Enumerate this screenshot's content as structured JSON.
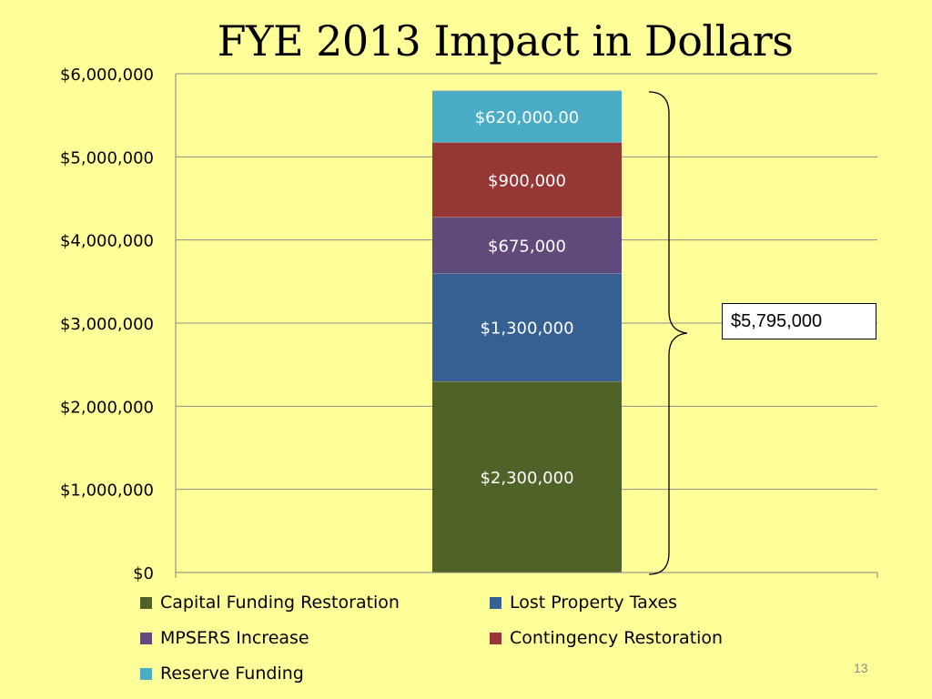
{
  "slide": {
    "page_number": "13"
  },
  "chart_data": {
    "type": "bar",
    "stacked": true,
    "title": "FYE 2013 Impact in Dollars",
    "categories": [
      ""
    ],
    "ylim": [
      0,
      6000000
    ],
    "yticks": [
      0,
      1000000,
      2000000,
      3000000,
      4000000,
      5000000,
      6000000
    ],
    "ytick_labels": [
      "$0",
      "$1,000,000",
      "$2,000,000",
      "$3,000,000",
      "$4,000,000",
      "$5,000,000",
      "$6,000,000"
    ],
    "grid": true,
    "legend_position": "bottom",
    "series": [
      {
        "name": "Capital Funding Restoration",
        "values": [
          2300000
        ],
        "label": "$2,300,000",
        "color": "#4f6228"
      },
      {
        "name": "Lost Property Taxes",
        "values": [
          1300000
        ],
        "label": "$1,300,000",
        "color": "#366092"
      },
      {
        "name": "MPSERS Increase",
        "values": [
          675000
        ],
        "label": "$675,000",
        "color": "#604a7b"
      },
      {
        "name": "Contingency Restoration",
        "values": [
          900000
        ],
        "label": "$900,000",
        "color": "#953735"
      },
      {
        "name": "Reserve Funding",
        "values": [
          620000
        ],
        "label": "$620,000.00",
        "color": "#4bacc6"
      }
    ],
    "total_label": "$5,795,000"
  }
}
